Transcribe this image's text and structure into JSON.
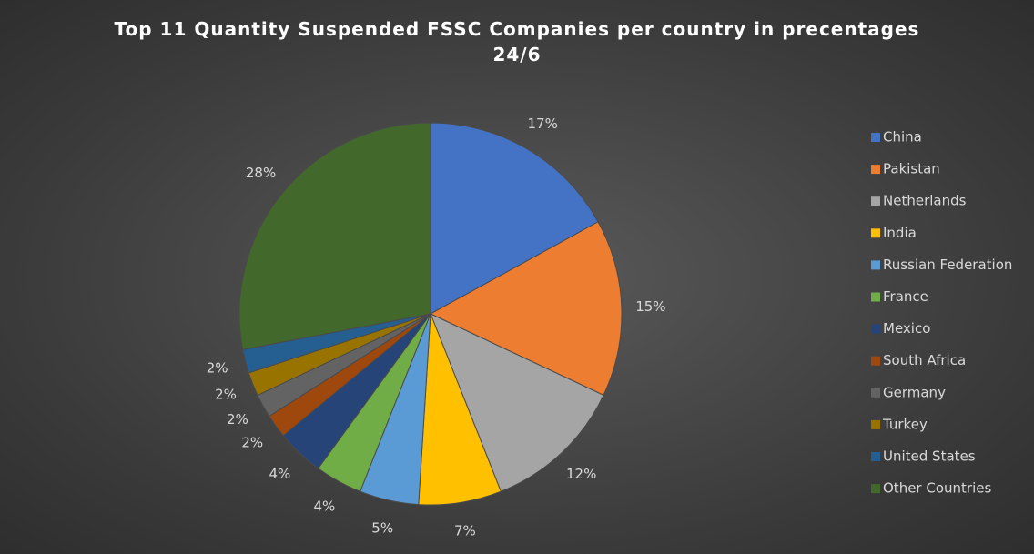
{
  "chart_data": {
    "type": "pie",
    "title": "Top 11 Quantity Suspended FSSC Companies per country in precentages 24/6",
    "categories": [
      "China",
      "Pakistan",
      "Netherlands",
      "India",
      "Russian Federation",
      "France",
      "Mexico",
      "South Africa",
      "Germany",
      "Turkey",
      "United States",
      "Other Countries"
    ],
    "values": [
      17,
      15,
      12,
      7,
      5,
      4,
      4,
      2,
      2,
      2,
      2,
      28
    ],
    "value_labels": [
      "17%",
      "15%",
      "12%",
      "7%",
      "5%",
      "4%",
      "4%",
      "2%",
      "2%",
      "2%",
      "2%",
      "28%"
    ],
    "colors": [
      "#4472c4",
      "#ed7d31",
      "#a5a5a5",
      "#ffc000",
      "#5b9bd5",
      "#70ad47",
      "#264478",
      "#9e480e",
      "#636363",
      "#997300",
      "#255e91",
      "#43682b"
    ],
    "legend": "right"
  }
}
